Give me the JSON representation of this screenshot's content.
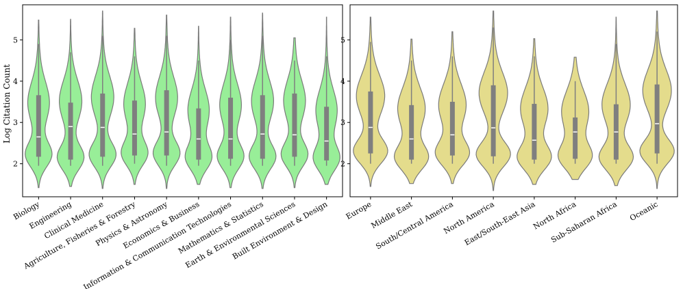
{
  "colors": {
    "left_fill": "#98ee98",
    "right_fill": "#e4dc8c",
    "edge": "#7a7a7a",
    "box": "#7f7f7f",
    "median": "#ffffff"
  },
  "chart_data": [
    {
      "type": "violin",
      "title": "",
      "ylabel": "Log Citation Count",
      "xlabel": "",
      "ylim": [
        1.2,
        5.85
      ],
      "yticks": [
        2,
        3,
        4,
        5
      ],
      "categories": [
        "Biology",
        "Engineering",
        "Clinical Medicine",
        "Agriculture, Fisheries & Forestry",
        "Physics & Astronomy",
        "Economics & Business",
        "Information & Communication Technologies",
        "Mathematics & Statistics",
        "Earth & Environmental Sciences",
        "Built Environment & Design"
      ],
      "stats": [
        {
          "min": 1.42,
          "max": 5.48,
          "q1": 2.17,
          "median": 2.65,
          "q3": 3.66,
          "whisker_low": 1.95,
          "whisker_high": 4.9
        },
        {
          "min": 1.45,
          "max": 5.5,
          "q1": 2.1,
          "median": 2.9,
          "q3": 3.48,
          "whisker_low": 1.95,
          "whisker_high": 4.7
        },
        {
          "min": 1.4,
          "max": 5.7,
          "q1": 2.17,
          "median": 2.88,
          "q3": 3.7,
          "whisker_low": 1.95,
          "whisker_high": 5.1
        },
        {
          "min": 1.5,
          "max": 5.28,
          "q1": 2.2,
          "median": 2.72,
          "q3": 3.53,
          "whisker_low": 2.0,
          "whisker_high": 4.6
        },
        {
          "min": 1.4,
          "max": 5.6,
          "q1": 2.2,
          "median": 2.77,
          "q3": 3.78,
          "whisker_low": 1.95,
          "whisker_high": 5.1
        },
        {
          "min": 1.5,
          "max": 5.33,
          "q1": 2.1,
          "median": 2.6,
          "q3": 3.34,
          "whisker_low": 1.95,
          "whisker_high": 4.5
        },
        {
          "min": 1.42,
          "max": 5.55,
          "q1": 2.12,
          "median": 2.6,
          "q3": 3.6,
          "whisker_low": 1.95,
          "whisker_high": 5.0
        },
        {
          "min": 1.4,
          "max": 5.65,
          "q1": 2.12,
          "median": 2.72,
          "q3": 3.66,
          "whisker_low": 1.95,
          "whisker_high": 5.1
        },
        {
          "min": 1.42,
          "max": 5.05,
          "q1": 2.17,
          "median": 2.7,
          "q3": 3.7,
          "whisker_low": 1.95,
          "whisker_high": 4.5
        },
        {
          "min": 1.5,
          "max": 5.55,
          "q1": 2.08,
          "median": 2.55,
          "q3": 3.38,
          "whisker_low": 1.95,
          "whisker_high": 4.6
        }
      ]
    },
    {
      "type": "violin",
      "title": "",
      "ylabel": "",
      "xlabel": "",
      "ylim": [
        1.2,
        5.85
      ],
      "yticks": [
        2,
        3,
        4,
        5
      ],
      "categories": [
        "Europe",
        "Middle East",
        "South/Central America",
        "North America",
        "East/South-East Asia",
        "North Africa",
        "Sub-Saharan Africa",
        "Oceanic"
      ],
      "stats": [
        {
          "min": 1.45,
          "max": 5.55,
          "q1": 2.25,
          "median": 2.88,
          "q3": 3.75,
          "whisker_low": 2.0,
          "whisker_high": 4.95
        },
        {
          "min": 1.52,
          "max": 5.02,
          "q1": 2.1,
          "median": 2.6,
          "q3": 3.42,
          "whisker_low": 2.0,
          "whisker_high": 4.5
        },
        {
          "min": 1.52,
          "max": 5.2,
          "q1": 2.2,
          "median": 2.7,
          "q3": 3.5,
          "whisker_low": 2.0,
          "whisker_high": 4.6
        },
        {
          "min": 1.35,
          "max": 5.7,
          "q1": 2.18,
          "median": 2.87,
          "q3": 3.9,
          "whisker_low": 2.0,
          "whisker_high": 5.3
        },
        {
          "min": 1.5,
          "max": 5.03,
          "q1": 2.1,
          "median": 2.57,
          "q3": 3.45,
          "whisker_low": 2.0,
          "whisker_high": 4.6
        },
        {
          "min": 1.62,
          "max": 4.58,
          "q1": 2.12,
          "median": 2.77,
          "q3": 3.12,
          "whisker_low": 2.0,
          "whisker_high": 4.0
        },
        {
          "min": 1.47,
          "max": 5.55,
          "q1": 2.1,
          "median": 2.77,
          "q3": 3.44,
          "whisker_low": 2.0,
          "whisker_high": 4.9
        },
        {
          "min": 1.4,
          "max": 5.7,
          "q1": 2.25,
          "median": 2.97,
          "q3": 3.92,
          "whisker_low": 2.0,
          "whisker_high": 5.2
        }
      ]
    }
  ]
}
